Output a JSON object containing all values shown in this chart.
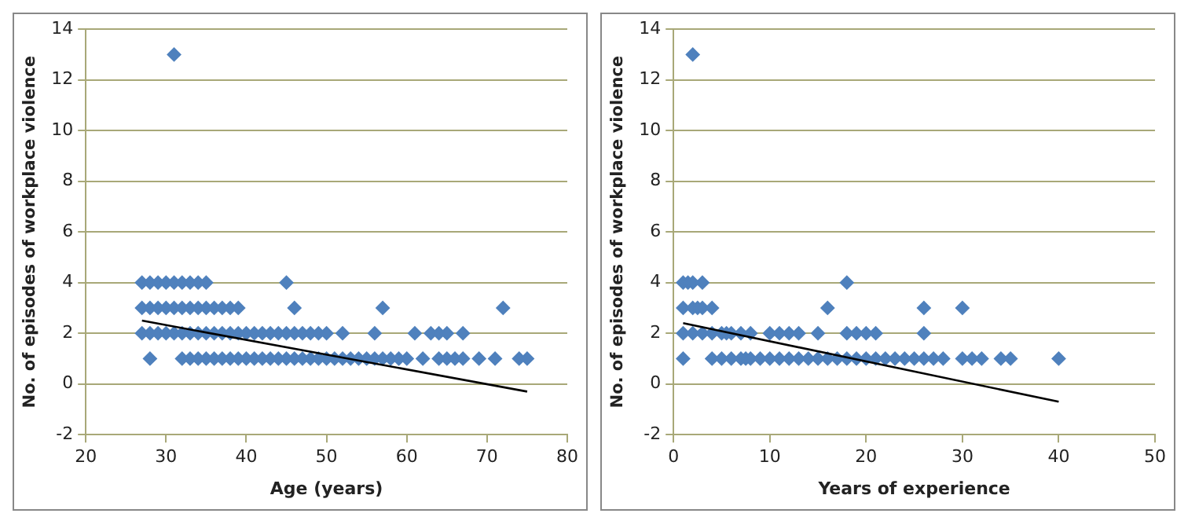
{
  "chart_data": [
    {
      "type": "scatter",
      "xlabel": "Age (years)",
      "ylabel": "No. of episodes of workplace violence",
      "xlim": [
        20,
        80
      ],
      "xticks": [
        20,
        30,
        40,
        50,
        60,
        70,
        80
      ],
      "ylim": [
        -2,
        14
      ],
      "yticks": [
        -2,
        0,
        2,
        4,
        6,
        8,
        10,
        12,
        14
      ],
      "grid": "y",
      "legend": false,
      "marker": "diamond",
      "series": [
        {
          "type": "scatter",
          "color": "#4f81bd",
          "x": [
            31,
            27,
            28,
            29,
            30,
            31,
            32,
            33,
            34,
            35,
            45,
            27,
            28,
            29,
            30,
            31,
            32,
            33,
            34,
            35,
            36,
            37,
            38,
            39,
            46,
            57,
            72,
            27,
            28,
            29,
            30,
            31,
            32,
            33,
            34,
            35,
            36,
            37,
            38,
            39,
            40,
            41,
            42,
            43,
            44,
            45,
            46,
            47,
            48,
            49,
            50,
            52,
            56,
            61,
            63,
            64,
            65,
            67,
            28,
            32,
            33,
            34,
            35,
            36,
            37,
            38,
            39,
            40,
            41,
            42,
            43,
            44,
            45,
            46,
            47,
            48,
            49,
            50,
            51,
            52,
            53,
            54,
            55,
            56,
            57,
            58,
            59,
            60,
            62,
            64,
            65,
            66,
            67,
            69,
            71,
            74,
            75
          ],
          "values": [
            13,
            4,
            4,
            4,
            4,
            4,
            4,
            4,
            4,
            4,
            4,
            3,
            3,
            3,
            3,
            3,
            3,
            3,
            3,
            3,
            3,
            3,
            3,
            3,
            3,
            3,
            3,
            2,
            2,
            2,
            2,
            2,
            2,
            2,
            2,
            2,
            2,
            2,
            2,
            2,
            2,
            2,
            2,
            2,
            2,
            2,
            2,
            2,
            2,
            2,
            2,
            2,
            2,
            2,
            2,
            2,
            2,
            2,
            1,
            1,
            1,
            1,
            1,
            1,
            1,
            1,
            1,
            1,
            1,
            1,
            1,
            1,
            1,
            1,
            1,
            1,
            1,
            1,
            1,
            1,
            1,
            1,
            1,
            1,
            1,
            1,
            1,
            1,
            1,
            1,
            1,
            1,
            1,
            1,
            1,
            1,
            1
          ]
        },
        {
          "type": "line",
          "color": "#000000",
          "marker": "none",
          "x": [
            27,
            75
          ],
          "values": [
            2.5,
            -0.3
          ]
        }
      ]
    },
    {
      "type": "scatter",
      "xlabel": "Years of experience",
      "ylabel": "No. of episodes of workplace violence",
      "xlim": [
        0,
        50
      ],
      "xticks": [
        0,
        10,
        20,
        30,
        40,
        50
      ],
      "ylim": [
        -2,
        14
      ],
      "yticks": [
        -2,
        0,
        2,
        4,
        6,
        8,
        10,
        12,
        14
      ],
      "grid": "y",
      "legend": false,
      "marker": "diamond",
      "series": [
        {
          "type": "scatter",
          "color": "#4f81bd",
          "x": [
            2,
            1,
            1.5,
            2,
            3,
            18,
            1,
            2,
            2.5,
            3,
            4,
            16,
            26,
            30,
            1,
            2,
            3,
            4,
            5,
            5.5,
            6,
            7,
            8,
            10,
            11,
            12,
            13,
            15,
            18,
            19,
            20,
            21,
            26,
            1,
            4,
            5,
            6,
            7,
            7.5,
            8,
            9,
            10,
            11,
            12,
            13,
            14,
            15,
            16,
            17,
            18,
            19,
            20,
            21,
            22,
            23,
            24,
            25,
            26,
            27,
            28,
            30,
            31,
            32,
            34,
            35,
            40
          ],
          "values": [
            13,
            4,
            4,
            4,
            4,
            4,
            3,
            3,
            3,
            3,
            3,
            3,
            3,
            3,
            2,
            2,
            2,
            2,
            2,
            2,
            2,
            2,
            2,
            2,
            2,
            2,
            2,
            2,
            2,
            2,
            2,
            2,
            2,
            1,
            1,
            1,
            1,
            1,
            1,
            1,
            1,
            1,
            1,
            1,
            1,
            1,
            1,
            1,
            1,
            1,
            1,
            1,
            1,
            1,
            1,
            1,
            1,
            1,
            1,
            1,
            1,
            1,
            1,
            1,
            1,
            1
          ]
        },
        {
          "type": "line",
          "color": "#000000",
          "marker": "none",
          "x": [
            1,
            40
          ],
          "values": [
            2.4,
            -0.7
          ]
        }
      ]
    }
  ]
}
